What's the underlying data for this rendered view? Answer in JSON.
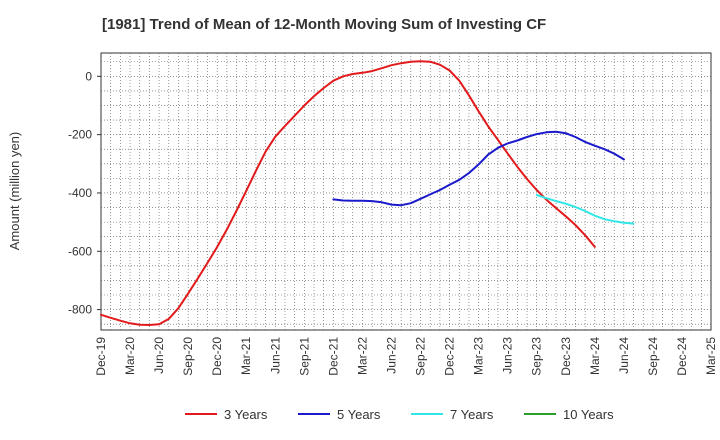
{
  "chart_data": {
    "type": "line",
    "title": "[1981]  Trend of Mean of 12-Month Moving Sum of Investing CF",
    "ylabel": "Amount (million yen)",
    "xlabel": "",
    "ylim": [
      -870,
      80
    ],
    "yticks": [
      0,
      -200,
      -400,
      -600,
      -800
    ],
    "xticks": [
      "Dec-19",
      "Mar-20",
      "Jun-20",
      "Sep-20",
      "Dec-20",
      "Mar-21",
      "Jun-21",
      "Sep-21",
      "Dec-21",
      "Mar-22",
      "Jun-22",
      "Sep-22",
      "Dec-22",
      "Mar-23",
      "Jun-23",
      "Sep-23",
      "Dec-23",
      "Mar-24",
      "Jun-24",
      "Sep-24",
      "Dec-24",
      "Mar-25"
    ],
    "grid": true,
    "legend_position": "bottom",
    "series": [
      {
        "name": "3 Years",
        "color": "#e31a1c",
        "values": [
          [
            0,
            -818
          ],
          [
            1,
            -828
          ],
          [
            2,
            -838
          ],
          [
            3,
            -847
          ],
          [
            4,
            -852
          ],
          [
            5,
            -853
          ],
          [
            6,
            -850
          ],
          [
            7,
            -832
          ],
          [
            8,
            -795
          ],
          [
            9,
            -745
          ],
          [
            10,
            -693
          ],
          [
            11,
            -640
          ],
          [
            12,
            -585
          ],
          [
            13,
            -525
          ],
          [
            14,
            -460
          ],
          [
            15,
            -393
          ],
          [
            16,
            -324
          ],
          [
            17,
            -258
          ],
          [
            18,
            -207
          ],
          [
            19,
            -170
          ],
          [
            20,
            -135
          ],
          [
            21,
            -100
          ],
          [
            22,
            -68
          ],
          [
            23,
            -40
          ],
          [
            24,
            -15
          ],
          [
            25,
            0
          ],
          [
            26,
            8
          ],
          [
            27,
            12
          ],
          [
            28,
            18
          ],
          [
            29,
            28
          ],
          [
            30,
            38
          ],
          [
            31,
            45
          ],
          [
            32,
            50
          ],
          [
            33,
            52
          ],
          [
            34,
            50
          ],
          [
            35,
            40
          ],
          [
            36,
            20
          ],
          [
            37,
            -15
          ],
          [
            38,
            -65
          ],
          [
            39,
            -120
          ],
          [
            40,
            -172
          ],
          [
            41,
            -218
          ],
          [
            42,
            -265
          ],
          [
            43,
            -310
          ],
          [
            44,
            -352
          ],
          [
            45,
            -390
          ],
          [
            46,
            -423
          ],
          [
            47,
            -452
          ],
          [
            48,
            -480
          ],
          [
            49,
            -510
          ],
          [
            50,
            -545
          ],
          [
            51,
            -585
          ]
        ]
      },
      {
        "name": "5 Years",
        "color": "#1a1acc",
        "values": [
          [
            24,
            -422
          ],
          [
            25,
            -426
          ],
          [
            26,
            -427
          ],
          [
            27,
            -427
          ],
          [
            28,
            -428
          ],
          [
            29,
            -432
          ],
          [
            30,
            -440
          ],
          [
            31,
            -442
          ],
          [
            32,
            -435
          ],
          [
            33,
            -420
          ],
          [
            34,
            -405
          ],
          [
            35,
            -390
          ],
          [
            36,
            -372
          ],
          [
            37,
            -355
          ],
          [
            38,
            -332
          ],
          [
            39,
            -302
          ],
          [
            40,
            -268
          ],
          [
            41,
            -245
          ],
          [
            42,
            -230
          ],
          [
            43,
            -220
          ],
          [
            44,
            -208
          ],
          [
            45,
            -198
          ],
          [
            46,
            -192
          ],
          [
            47,
            -190
          ],
          [
            48,
            -195
          ],
          [
            49,
            -208
          ],
          [
            50,
            -225
          ],
          [
            51,
            -238
          ],
          [
            52,
            -250
          ],
          [
            53,
            -265
          ],
          [
            54,
            -285
          ]
        ]
      },
      {
        "name": "7 Years",
        "color": "#33e6e6",
        "values": [
          [
            45,
            -407
          ],
          [
            46,
            -418
          ],
          [
            47,
            -428
          ],
          [
            48,
            -437
          ],
          [
            49,
            -448
          ],
          [
            50,
            -462
          ],
          [
            51,
            -478
          ],
          [
            52,
            -490
          ],
          [
            53,
            -497
          ],
          [
            54,
            -502
          ],
          [
            55,
            -505
          ]
        ]
      },
      {
        "name": "10 Years",
        "color": "#2ca02c",
        "values": []
      }
    ]
  }
}
